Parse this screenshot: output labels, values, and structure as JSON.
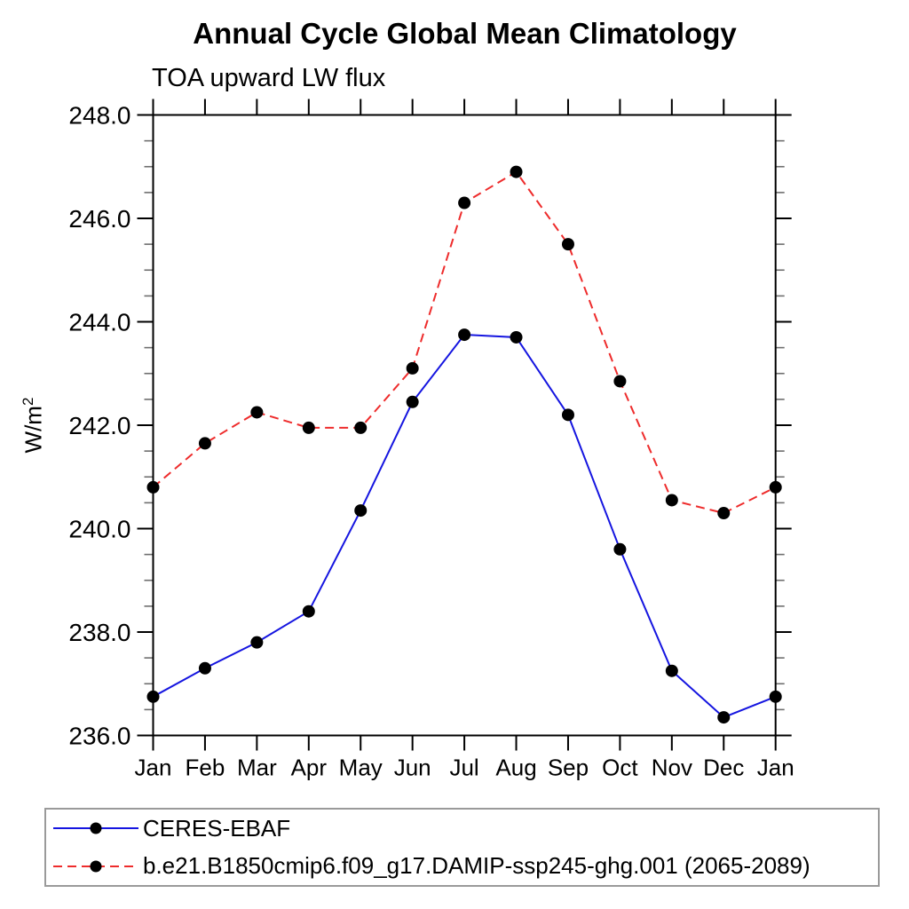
{
  "chart_data": {
    "type": "line",
    "title": "Annual Cycle Global Mean Climatology",
    "subtitle": "TOA upward LW flux",
    "ylabel_base": "W/m",
    "ylabel_exponent": "2",
    "categories": [
      "Jan",
      "Feb",
      "Mar",
      "Apr",
      "May",
      "Jun",
      "Jul",
      "Aug",
      "Sep",
      "Oct",
      "Nov",
      "Dec",
      "Jan"
    ],
    "ylim": [
      236.0,
      248.0
    ],
    "ytick_major_interval": 2.0,
    "ytick_minor_interval": 0.5,
    "ytick_labels": [
      "236.0",
      "238.0",
      "240.0",
      "242.0",
      "244.0",
      "246.0",
      "248.0"
    ],
    "grid": false,
    "legend_position": "bottom-left-box",
    "series": [
      {
        "name": "CERES-EBAF",
        "line_style": "solid",
        "color": "#1515e0",
        "marker": "circle",
        "marker_color": "#000000",
        "values": [
          236.75,
          237.3,
          237.8,
          238.4,
          240.35,
          242.45,
          243.75,
          243.7,
          242.2,
          239.6,
          237.25,
          236.35,
          236.75
        ]
      },
      {
        "name": "b.e21.B1850cmip6.f09_g17.DAMIP-ssp245-ghg.001 (2065-2089)",
        "line_style": "dashed",
        "color": "#ee2c2c",
        "marker": "circle",
        "marker_color": "#000000",
        "values": [
          240.8,
          241.65,
          242.25,
          241.95,
          241.95,
          243.1,
          246.3,
          246.9,
          245.5,
          242.85,
          240.55,
          240.3,
          240.8
        ]
      }
    ]
  }
}
